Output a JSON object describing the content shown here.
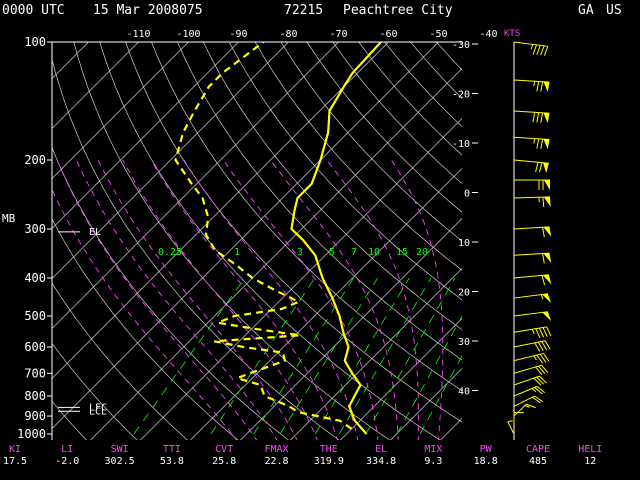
{
  "header": {
    "time": "0000 UTC",
    "date": "15 Mar 2008075",
    "station_id": "72215",
    "station_name": "Peachtree City",
    "state": "GA",
    "country": "US"
  },
  "colors": {
    "background": "#000000",
    "sounding": "#ffff00",
    "isotherm": "#cfcfcf",
    "dry_adiabat": "#cfcfcf",
    "moist_adiabat": "#ff40ff",
    "mixing_ratio": "#00ff00",
    "index_label": "#ff40ff",
    "index_value": "#ffffff",
    "wind_barb": "#ffff00"
  },
  "chart_data": {
    "type": "line",
    "title": "Skew-T log-P sounding",
    "y_unit_label": "MB",
    "wind_unit_label": "KTS",
    "pressure_ticks": [
      100,
      200,
      300,
      400,
      500,
      600,
      700,
      800,
      900,
      1000
    ],
    "temperature_ticks": [
      -110,
      -100,
      -90,
      -80,
      -70,
      -60,
      -50,
      -40
    ],
    "mixing_ratio_labels": [
      "0.25",
      "1",
      "3",
      "5",
      "7",
      "10",
      "15",
      "20"
    ],
    "wind_axis_ticks": [
      "-30",
      "-20",
      "-10",
      "0",
      "10",
      "20",
      "30",
      "40"
    ],
    "level_labels": [
      {
        "name": "EL",
        "pressure": 305
      },
      {
        "name": "LFC",
        "pressure": 855
      },
      {
        "name": "LCL",
        "pressure": 875
      }
    ],
    "series": [
      {
        "name": "Temperature",
        "points": [
          [
            1000,
            14.0
          ],
          [
            925,
            9.0
          ],
          [
            850,
            5.0
          ],
          [
            800,
            4.0
          ],
          [
            750,
            3.0
          ],
          [
            700,
            -1.0
          ],
          [
            650,
            -5.0
          ],
          [
            600,
            -7.0
          ],
          [
            550,
            -11.0
          ],
          [
            500,
            -15.0
          ],
          [
            450,
            -20.0
          ],
          [
            400,
            -26.0
          ],
          [
            350,
            -32.0
          ],
          [
            320,
            -37.5
          ],
          [
            300,
            -42.0
          ],
          [
            270,
            -45.0
          ],
          [
            250,
            -47.0
          ],
          [
            230,
            -47.0
          ],
          [
            200,
            -50.0
          ],
          [
            170,
            -54.0
          ],
          [
            150,
            -58.0
          ],
          [
            130,
            -60.0
          ],
          [
            120,
            -61.0
          ],
          [
            100,
            -61.5
          ]
        ]
      },
      {
        "name": "Dewpoint",
        "points": [
          [
            970,
            10.0
          ],
          [
            925,
            6.0
          ],
          [
            880,
            -4.0
          ],
          [
            850,
            -7.0
          ],
          [
            800,
            -14.0
          ],
          [
            750,
            -17.0
          ],
          [
            720,
            -23.0
          ],
          [
            700,
            -21.5
          ],
          [
            650,
            -17.0
          ],
          [
            620,
            -19.0
          ],
          [
            600,
            -28.0
          ],
          [
            580,
            -35.0
          ],
          [
            560,
            -19.0
          ],
          [
            540,
            -29.0
          ],
          [
            520,
            -38.0
          ],
          [
            500,
            -36.0
          ],
          [
            480,
            -28.0
          ],
          [
            460,
            -26.0
          ],
          [
            430,
            -33.0
          ],
          [
            400,
            -40.0
          ],
          [
            370,
            -46.0
          ],
          [
            340,
            -53.0
          ],
          [
            310,
            -58.0
          ],
          [
            280,
            -61.0
          ],
          [
            250,
            -66.0
          ],
          [
            230,
            -71.0
          ],
          [
            200,
            -79.0
          ],
          [
            170,
            -83.0
          ],
          [
            150,
            -85.0
          ],
          [
            130,
            -87.0
          ],
          [
            120,
            -87.0
          ],
          [
            100,
            -85.0
          ]
        ]
      }
    ],
    "wind_barbs": [
      {
        "pressure": 100,
        "direction": 290,
        "speed": 45
      },
      {
        "pressure": 125,
        "direction": 280,
        "speed": 75
      },
      {
        "pressure": 150,
        "direction": 280,
        "speed": 80
      },
      {
        "pressure": 175,
        "direction": 280,
        "speed": 75
      },
      {
        "pressure": 200,
        "direction": 285,
        "speed": 70
      },
      {
        "pressure": 225,
        "direction": 270,
        "speed": 70
      },
      {
        "pressure": 250,
        "direction": 265,
        "speed": 65
      },
      {
        "pressure": 300,
        "direction": 260,
        "speed": 60
      },
      {
        "pressure": 350,
        "direction": 260,
        "speed": 60
      },
      {
        "pressure": 400,
        "direction": 255,
        "speed": 60
      },
      {
        "pressure": 450,
        "direction": 250,
        "speed": 55
      },
      {
        "pressure": 500,
        "direction": 250,
        "speed": 50
      },
      {
        "pressure": 550,
        "direction": 245,
        "speed": 45
      },
      {
        "pressure": 600,
        "direction": 240,
        "speed": 40
      },
      {
        "pressure": 650,
        "direction": 235,
        "speed": 35
      },
      {
        "pressure": 700,
        "direction": 230,
        "speed": 30
      },
      {
        "pressure": 750,
        "direction": 225,
        "speed": 30
      },
      {
        "pressure": 800,
        "direction": 220,
        "speed": 25
      },
      {
        "pressure": 850,
        "direction": 215,
        "speed": 20
      },
      {
        "pressure": 900,
        "direction": 200,
        "speed": 15
      },
      {
        "pressure": 950,
        "direction": 180,
        "speed": 10
      },
      {
        "pressure": 1000,
        "direction": 170,
        "speed": 5
      }
    ]
  },
  "indices": [
    {
      "label": "KI",
      "value": "17.5"
    },
    {
      "label": "LI",
      "value": "-2.0"
    },
    {
      "label": "SWI",
      "value": "302.5"
    },
    {
      "label": "TTI",
      "value": "53.8"
    },
    {
      "label": "CVT",
      "value": "25.8"
    },
    {
      "label": "FMAX",
      "value": "22.8"
    },
    {
      "label": "THE",
      "value": "319.9"
    },
    {
      "label": "EL",
      "value": "334.8"
    },
    {
      "label": "MIX",
      "value": "9.3"
    },
    {
      "label": "PW",
      "value": "18.8"
    },
    {
      "label": "CAPE",
      "value": "485"
    },
    {
      "label": "HELI",
      "value": "12"
    }
  ]
}
